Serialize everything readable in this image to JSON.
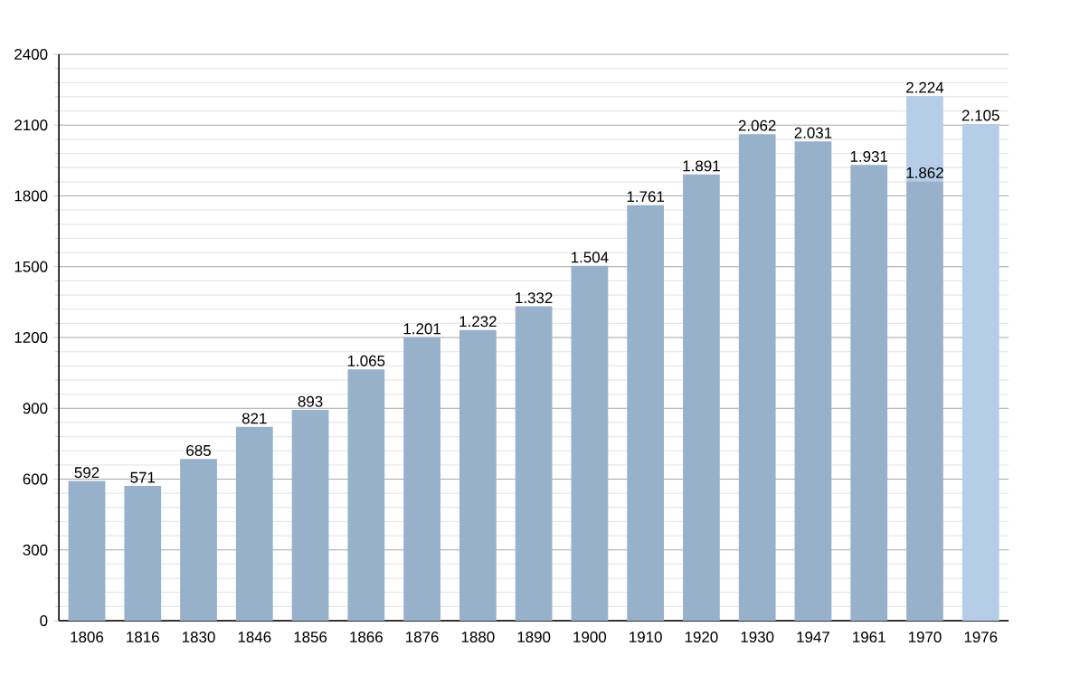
{
  "chart_data": {
    "type": "bar",
    "stacked": true,
    "categories": [
      "1806",
      "1816",
      "1830",
      "1846",
      "1856",
      "1866",
      "1876",
      "1880",
      "1890",
      "1900",
      "1910",
      "1920",
      "1930",
      "1947",
      "1961",
      "1970",
      "1976"
    ],
    "series": [
      {
        "color": "#97b1cb",
        "values": [
          592,
          571,
          685,
          821,
          893,
          1065,
          1201,
          1232,
          1332,
          1504,
          1761,
          1891,
          2062,
          2031,
          1931,
          1862,
          null
        ],
        "value_labels": [
          "592",
          "571",
          "685",
          "821",
          "893",
          "1.065",
          "1.201",
          "1.232",
          "1.332",
          "1.504",
          "1.761",
          "1.891",
          "2.062",
          "2.031",
          "1.931",
          "1.862",
          null
        ]
      },
      {
        "color": "#b5cde6",
        "values": [
          null,
          null,
          null,
          null,
          null,
          null,
          null,
          null,
          null,
          null,
          null,
          null,
          null,
          null,
          null,
          362,
          2105
        ],
        "value_labels": [
          null,
          null,
          null,
          null,
          null,
          null,
          null,
          null,
          null,
          null,
          null,
          null,
          null,
          null,
          null,
          null,
          "2.105"
        ]
      }
    ],
    "totals": [
      null,
      null,
      null,
      null,
      null,
      null,
      null,
      null,
      null,
      null,
      null,
      null,
      null,
      null,
      null,
      "2.224",
      null
    ],
    "ylim": [
      0,
      2400
    ],
    "yticks": [
      0,
      300,
      600,
      900,
      1200,
      1500,
      1800,
      2100,
      2400
    ],
    "grid": "y"
  }
}
